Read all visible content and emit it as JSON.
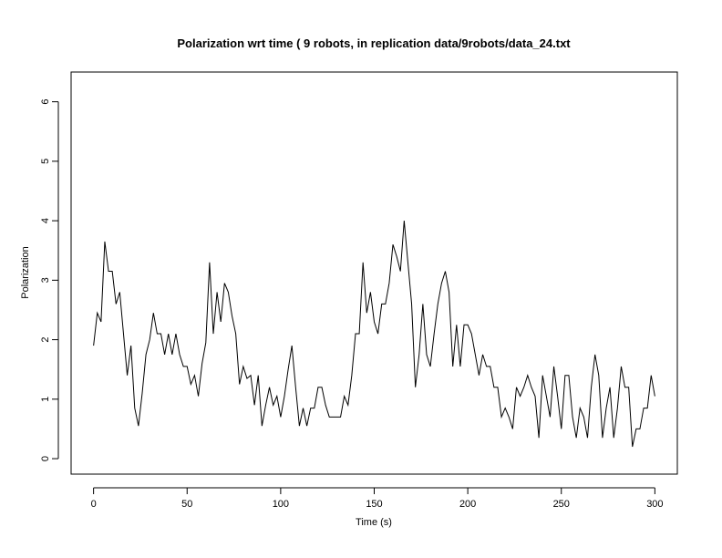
{
  "chart_data": {
    "type": "line",
    "title": "Polarization wrt time ( 9 robots, in replication  data/9robots/data_24.txt",
    "x_label": "Time (s)",
    "y_label": "Polarization",
    "color": "#000000",
    "xlim": [
      -12,
      312
    ],
    "ylim": [
      -0.26,
      6.5
    ],
    "xticks": [
      0,
      50,
      100,
      150,
      200,
      250,
      300
    ],
    "yticks": [
      0,
      1,
      2,
      3,
      4,
      5,
      6
    ],
    "x": [
      0,
      2,
      4,
      6,
      8,
      10,
      12,
      14,
      16,
      18,
      20,
      22,
      24,
      26,
      28,
      30,
      32,
      34,
      36,
      38,
      40,
      42,
      44,
      46,
      48,
      50,
      52,
      54,
      56,
      58,
      60,
      62,
      64,
      66,
      68,
      70,
      72,
      74,
      76,
      78,
      80,
      82,
      84,
      86,
      88,
      90,
      92,
      94,
      96,
      98,
      100,
      102,
      104,
      106,
      108,
      110,
      112,
      114,
      116,
      118,
      120,
      122,
      124,
      126,
      128,
      130,
      132,
      134,
      136,
      138,
      140,
      142,
      144,
      146,
      148,
      150,
      152,
      154,
      156,
      158,
      160,
      162,
      164,
      166,
      168,
      170,
      172,
      174,
      176,
      178,
      180,
      182,
      184,
      186,
      188,
      190,
      192,
      194,
      196,
      198,
      200,
      202,
      204,
      206,
      208,
      210,
      212,
      214,
      216,
      218,
      220,
      222,
      224,
      226,
      228,
      230,
      232,
      234,
      236,
      238,
      240,
      242,
      244,
      246,
      248,
      250,
      252,
      254,
      256,
      258,
      260,
      262,
      264,
      266,
      268,
      270,
      272,
      274,
      276,
      278,
      280,
      282,
      284,
      286,
      288,
      290,
      292,
      294,
      296,
      298,
      300
    ],
    "values": [
      1.9,
      2.45,
      2.3,
      3.65,
      3.15,
      3.15,
      2.6,
      2.8,
      2.1,
      1.4,
      1.9,
      0.85,
      0.55,
      1.1,
      1.75,
      2.0,
      2.45,
      2.1,
      2.1,
      1.75,
      2.1,
      1.75,
      2.1,
      1.75,
      1.55,
      1.55,
      1.25,
      1.4,
      1.05,
      1.6,
      1.95,
      3.3,
      2.1,
      2.8,
      2.3,
      2.95,
      2.8,
      2.4,
      2.1,
      1.25,
      1.55,
      1.35,
      1.4,
      0.9,
      1.4,
      0.55,
      0.9,
      1.2,
      0.9,
      1.05,
      0.7,
      1.05,
      1.5,
      1.9,
      1.2,
      0.55,
      0.85,
      0.55,
      0.85,
      0.85,
      1.2,
      1.2,
      0.9,
      0.7,
      0.7,
      0.7,
      0.7,
      1.05,
      0.9,
      1.4,
      2.1,
      2.1,
      3.3,
      2.45,
      2.8,
      2.3,
      2.1,
      2.6,
      2.6,
      2.95,
      3.6,
      3.4,
      3.15,
      4.0,
      3.3,
      2.6,
      1.2,
      1.75,
      2.6,
      1.75,
      1.55,
      2.1,
      2.6,
      2.95,
      3.15,
      2.8,
      1.55,
      2.25,
      1.55,
      2.25,
      2.25,
      2.1,
      1.75,
      1.4,
      1.75,
      1.55,
      1.55,
      1.2,
      1.2,
      0.7,
      0.85,
      0.7,
      0.5,
      1.2,
      1.05,
      1.2,
      1.4,
      1.2,
      1.05,
      0.35,
      1.4,
      1.05,
      0.7,
      1.55,
      1.05,
      0.5,
      1.4,
      1.4,
      0.7,
      0.35,
      0.85,
      0.7,
      0.35,
      1.2,
      1.75,
      1.4,
      0.35,
      0.85,
      1.2,
      0.35,
      0.85,
      1.55,
      1.2,
      1.2,
      0.2,
      0.5,
      0.5,
      0.85,
      0.85,
      1.4,
      1.05
    ]
  }
}
